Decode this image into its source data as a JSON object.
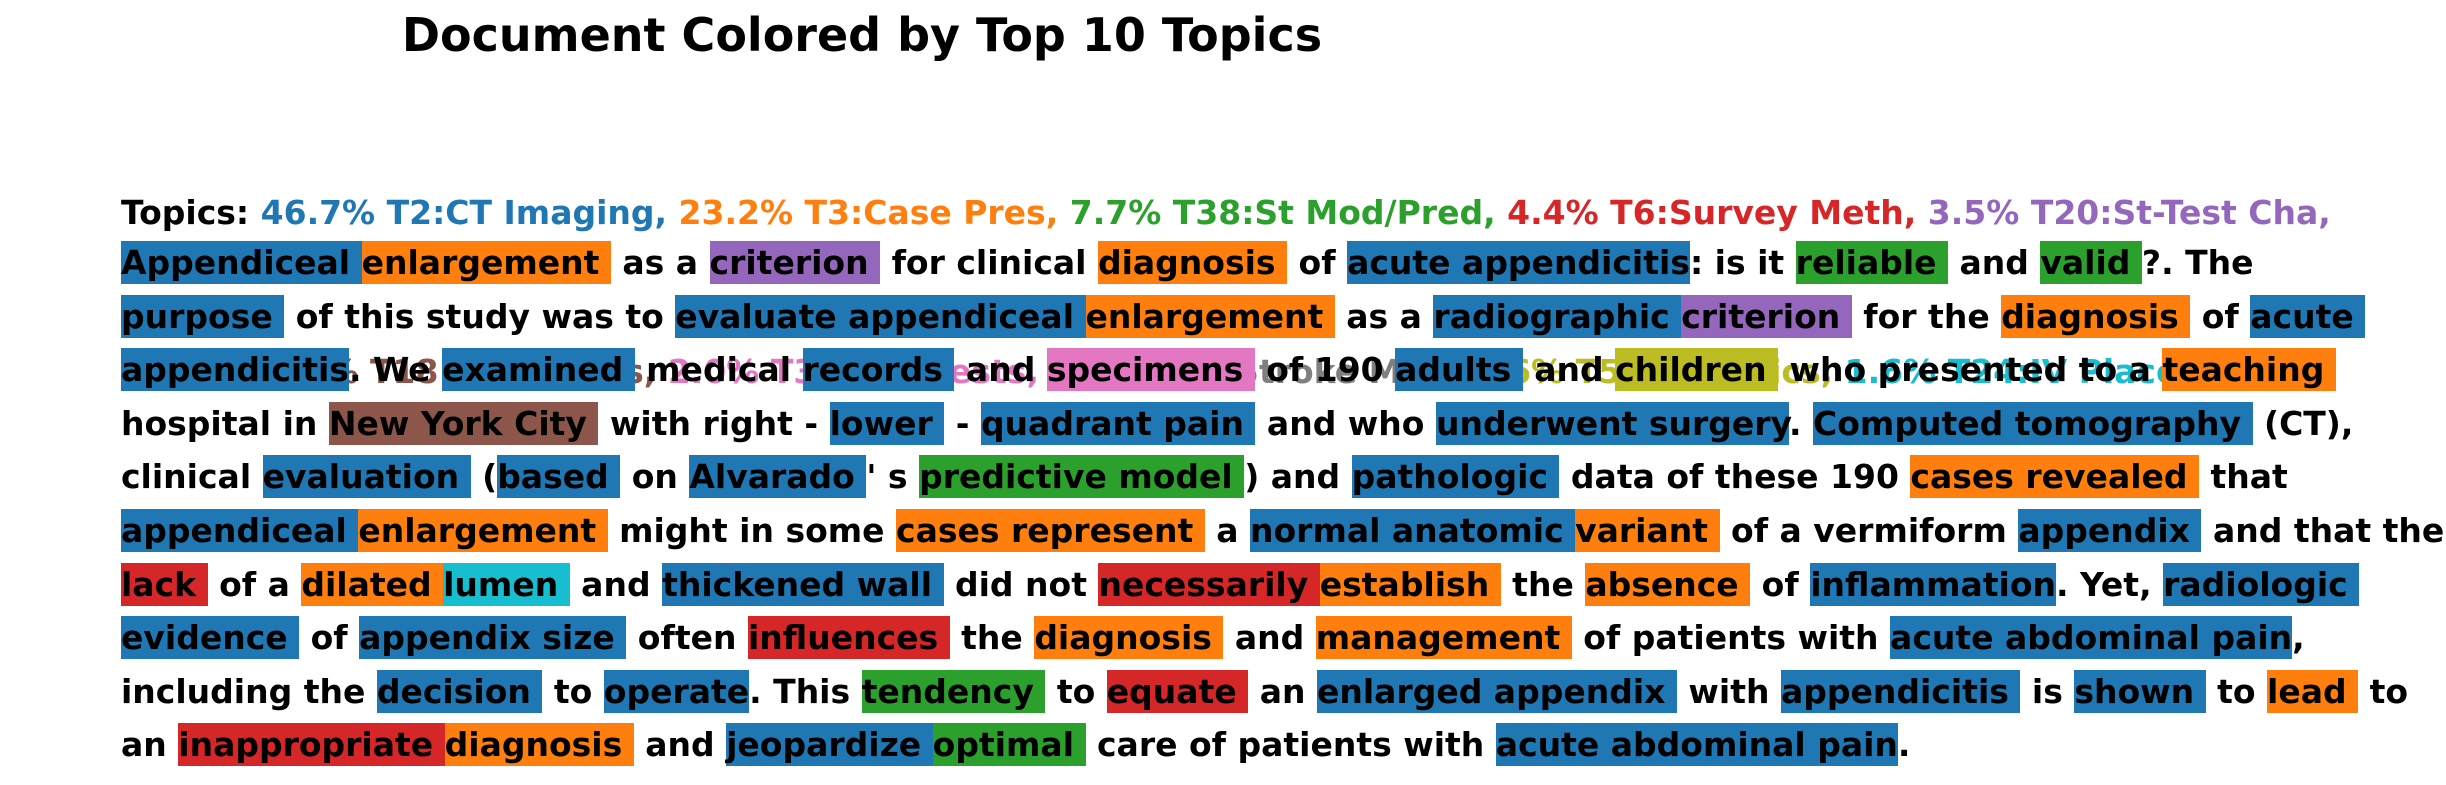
{
  "title": "Document Colored by Top 10 Topics",
  "topics": {
    "label": "Topics:",
    "items": [
      {
        "share": 46.7,
        "share_label": "46.7%",
        "name": "T2:CT Imaging,",
        "color": "#1f77b4"
      },
      {
        "share": 23.2,
        "share_label": "23.2%",
        "name": "T3:Case Pres,",
        "color": "#ff7f0e"
      },
      {
        "share": 7.7,
        "share_label": "7.7%",
        "name": "T38:St Mod/Pred,",
        "color": "#2ca02c"
      },
      {
        "share": 4.4,
        "share_label": "4.4%",
        "name": "T6:Survey Meth,",
        "color": "#d62728"
      },
      {
        "share": 3.5,
        "share_label": "3.5%",
        "name": "T20:St-Test Cha,",
        "color": "#9467bd"
      },
      {
        "share": 2.7,
        "share_label": "2.7%",
        "name": "T18:Publ H/Dis,",
        "color": "#8c564b"
      },
      {
        "share": 2.0,
        "share_label": "2.0%",
        "name": "T37:Lab Tests,",
        "color": "#e377c2"
      },
      {
        "share": 1.9,
        "share_label": "1.9%",
        "name": "T19:Stroke Mng,",
        "color": "#7f7f7f"
      },
      {
        "share": 1.6,
        "share_label": "1.6%",
        "name": "T5:Pediatrics,",
        "color": "#bcbd22"
      },
      {
        "share": 1.6,
        "share_label": "1.6%",
        "name": "T24:IV Place,",
        "color": "#17becf"
      }
    ]
  },
  "body": {
    "lines": [
      [
        {
          "text": "Appendiceal ",
          "color": "#1f77b4"
        },
        {
          "text": "enlargement ",
          "color": "#ff7f0e"
        },
        {
          "text": " as a "
        },
        {
          "text": "criterion ",
          "color": "#9467bd"
        },
        {
          "text": " for clinical "
        },
        {
          "text": "diagnosis ",
          "color": "#ff7f0e"
        },
        {
          "text": " of "
        },
        {
          "text": "acute appendicitis",
          "color": "#1f77b4"
        },
        {
          "text": ": is it "
        },
        {
          "text": "reliable ",
          "color": "#2ca02c"
        },
        {
          "text": " and "
        },
        {
          "text": "valid ",
          "color": "#2ca02c"
        },
        {
          "text": "?. The"
        }
      ],
      [
        {
          "text": "purpose ",
          "color": "#1f77b4"
        },
        {
          "text": " of this study was to "
        },
        {
          "text": "evaluate appendiceal ",
          "color": "#1f77b4"
        },
        {
          "text": "enlargement ",
          "color": "#ff7f0e"
        },
        {
          "text": " as a "
        },
        {
          "text": "radiographic ",
          "color": "#1f77b4"
        },
        {
          "text": "criterion ",
          "color": "#9467bd"
        },
        {
          "text": " for the "
        },
        {
          "text": "diagnosis ",
          "color": "#ff7f0e"
        },
        {
          "text": " of "
        },
        {
          "text": "acute ",
          "color": "#1f77b4"
        }
      ],
      [
        {
          "text": "appendicitis",
          "color": "#1f77b4"
        },
        {
          "text": ". We "
        },
        {
          "text": "examined ",
          "color": "#1f77b4"
        },
        {
          "text": " medical "
        },
        {
          "text": "records ",
          "color": "#1f77b4"
        },
        {
          "text": " and "
        },
        {
          "text": "specimens ",
          "color": "#e377c2"
        },
        {
          "text": " of 190 "
        },
        {
          "text": "adults ",
          "color": "#1f77b4"
        },
        {
          "text": " and "
        },
        {
          "text": "children ",
          "color": "#bcbd22"
        },
        {
          "text": " who presented to a "
        },
        {
          "text": "teaching ",
          "color": "#ff7f0e"
        }
      ],
      [
        {
          "text": "hospital in "
        },
        {
          "text": "New York City ",
          "color": "#8c564b"
        },
        {
          "text": " with right - "
        },
        {
          "text": "lower ",
          "color": "#1f77b4"
        },
        {
          "text": " - "
        },
        {
          "text": "quadrant pain ",
          "color": "#1f77b4"
        },
        {
          "text": " and who "
        },
        {
          "text": "underwent surgery",
          "color": "#1f77b4"
        },
        {
          "text": ". "
        },
        {
          "text": "Computed tomography ",
          "color": "#1f77b4"
        },
        {
          "text": " (CT),"
        }
      ],
      [
        {
          "text": "clinical "
        },
        {
          "text": "evaluation ",
          "color": "#1f77b4"
        },
        {
          "text": " ("
        },
        {
          "text": "based ",
          "color": "#1f77b4"
        },
        {
          "text": " on "
        },
        {
          "text": "Alvarado ",
          "color": "#1f77b4"
        },
        {
          "text": "' s "
        },
        {
          "text": "predictive model ",
          "color": "#2ca02c"
        },
        {
          "text": ") and "
        },
        {
          "text": "pathologic ",
          "color": "#1f77b4"
        },
        {
          "text": " data of these 190 "
        },
        {
          "text": "cases revealed ",
          "color": "#ff7f0e"
        },
        {
          "text": " that"
        }
      ],
      [
        {
          "text": "appendiceal ",
          "color": "#1f77b4"
        },
        {
          "text": "enlargement ",
          "color": "#ff7f0e"
        },
        {
          "text": " might in some "
        },
        {
          "text": "cases represent ",
          "color": "#ff7f0e"
        },
        {
          "text": " a "
        },
        {
          "text": "normal anatomic ",
          "color": "#1f77b4"
        },
        {
          "text": "variant ",
          "color": "#ff7f0e"
        },
        {
          "text": " of a vermiform "
        },
        {
          "text": "appendix ",
          "color": "#1f77b4"
        },
        {
          "text": " and that the"
        }
      ],
      [
        {
          "text": "lack ",
          "color": "#d62728"
        },
        {
          "text": " of a "
        },
        {
          "text": "dilated ",
          "color": "#ff7f0e"
        },
        {
          "text": "lumen ",
          "color": "#17becf"
        },
        {
          "text": " and "
        },
        {
          "text": "thickened wall ",
          "color": "#1f77b4"
        },
        {
          "text": " did not "
        },
        {
          "text": "necessarily ",
          "color": "#d62728"
        },
        {
          "text": "establish ",
          "color": "#ff7f0e"
        },
        {
          "text": " the "
        },
        {
          "text": "absence ",
          "color": "#ff7f0e"
        },
        {
          "text": " of "
        },
        {
          "text": "inflammation",
          "color": "#1f77b4"
        },
        {
          "text": ". Yet, "
        },
        {
          "text": "radiologic ",
          "color": "#1f77b4"
        }
      ],
      [
        {
          "text": "evidence ",
          "color": "#1f77b4"
        },
        {
          "text": " of "
        },
        {
          "text": "appendix size ",
          "color": "#1f77b4"
        },
        {
          "text": " often "
        },
        {
          "text": "influences ",
          "color": "#d62728"
        },
        {
          "text": " the "
        },
        {
          "text": "diagnosis ",
          "color": "#ff7f0e"
        },
        {
          "text": " and "
        },
        {
          "text": "management ",
          "color": "#ff7f0e"
        },
        {
          "text": " of patients with "
        },
        {
          "text": "acute abdominal pain",
          "color": "#1f77b4"
        },
        {
          "text": ","
        }
      ],
      [
        {
          "text": "including the "
        },
        {
          "text": "decision ",
          "color": "#1f77b4"
        },
        {
          "text": " to "
        },
        {
          "text": "operate",
          "color": "#1f77b4"
        },
        {
          "text": ". This "
        },
        {
          "text": "tendency ",
          "color": "#2ca02c"
        },
        {
          "text": " to "
        },
        {
          "text": "equate ",
          "color": "#d62728"
        },
        {
          "text": " an "
        },
        {
          "text": "enlarged appendix ",
          "color": "#1f77b4"
        },
        {
          "text": " with "
        },
        {
          "text": "appendicitis ",
          "color": "#1f77b4"
        },
        {
          "text": " is "
        },
        {
          "text": "shown ",
          "color": "#1f77b4"
        },
        {
          "text": " to "
        },
        {
          "text": "lead ",
          "color": "#ff7f0e"
        },
        {
          "text": " to"
        }
      ],
      [
        {
          "text": "an "
        },
        {
          "text": "inappropriate ",
          "color": "#d62728"
        },
        {
          "text": "diagnosis ",
          "color": "#ff7f0e"
        },
        {
          "text": " and "
        },
        {
          "text": "jeopardize ",
          "color": "#1f77b4"
        },
        {
          "text": "optimal ",
          "color": "#2ca02c"
        },
        {
          "text": " care of patients with "
        },
        {
          "text": "acute abdominal pain",
          "color": "#1f77b4"
        },
        {
          "text": "."
        }
      ]
    ]
  }
}
